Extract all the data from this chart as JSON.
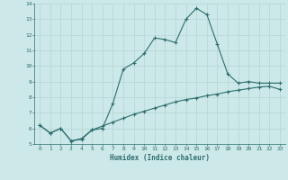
{
  "xlabel": "Humidex (Indice chaleur)",
  "background_color": "#cce8e8",
  "line_color": "#2d6e6e",
  "grid_color": "#b8d8d8",
  "xlim": [
    -0.5,
    23.5
  ],
  "ylim": [
    5,
    14
  ],
  "xticks": [
    0,
    1,
    2,
    3,
    4,
    5,
    6,
    7,
    8,
    9,
    10,
    11,
    12,
    13,
    14,
    15,
    16,
    17,
    18,
    19,
    20,
    21,
    22,
    23
  ],
  "yticks": [
    5,
    6,
    7,
    8,
    9,
    10,
    11,
    12,
    13,
    14
  ],
  "curve1_x": [
    0,
    1,
    2,
    3,
    4,
    5,
    6,
    7,
    8,
    9,
    10,
    11,
    12,
    13,
    14,
    15,
    16,
    17,
    18,
    19,
    20,
    21,
    22,
    23
  ],
  "curve1_y": [
    6.2,
    5.7,
    6.0,
    5.2,
    5.3,
    5.9,
    6.0,
    7.6,
    9.8,
    10.2,
    10.8,
    11.8,
    11.7,
    11.5,
    13.0,
    13.7,
    13.3,
    11.4,
    9.5,
    8.9,
    9.0,
    8.9,
    8.9,
    8.9
  ],
  "curve2_x": [
    0,
    1,
    2,
    3,
    4,
    5,
    6,
    7,
    8,
    9,
    10,
    11,
    12,
    13,
    14,
    15,
    16,
    17,
    18,
    19,
    20,
    21,
    22,
    23
  ],
  "curve2_y": [
    6.2,
    5.7,
    6.0,
    5.2,
    5.35,
    5.9,
    6.15,
    6.4,
    6.65,
    6.9,
    7.1,
    7.3,
    7.5,
    7.7,
    7.85,
    7.95,
    8.1,
    8.2,
    8.35,
    8.45,
    8.55,
    8.65,
    8.7,
    8.5
  ]
}
